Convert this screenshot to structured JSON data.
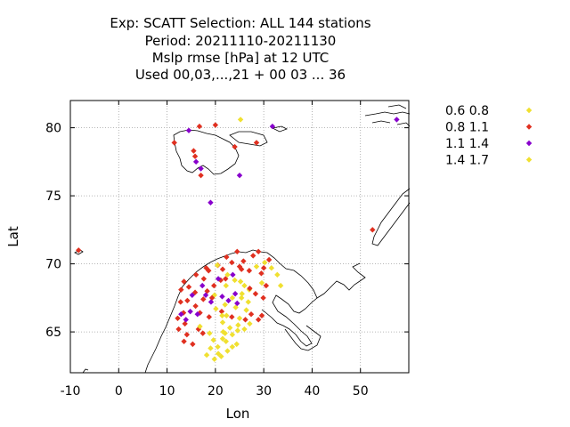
{
  "title_lines": [
    "Exp: SCATT   Selection: ALL    144 stations",
    "Period: 20211110-20211130",
    "Mslp rmse [hPa] at  12 UTC",
    "Used  00,03,...,21  + 00 03 ... 36"
  ],
  "chart_data": {
    "type": "scatter",
    "xlabel": "Lon",
    "ylabel": "Lat",
    "xlim": [
      -10,
      60
    ],
    "ylim": [
      62,
      82
    ],
    "xticks": [
      -10,
      0,
      10,
      20,
      30,
      40,
      50
    ],
    "yticks": [
      65,
      70,
      75,
      80
    ],
    "grid": true,
    "legend_position": "right",
    "series": [
      {
        "name": "0.6 0.8",
        "color": "#f0e030",
        "points": [
          [
            25.2,
            80.6
          ],
          [
            22.5,
            69.2
          ],
          [
            24,
            68.8
          ],
          [
            26,
            68.4
          ],
          [
            27,
            68.1
          ],
          [
            25.5,
            67.8
          ],
          [
            23.5,
            67.5
          ],
          [
            22,
            67
          ],
          [
            24.2,
            66.8
          ],
          [
            26.4,
            66.6
          ],
          [
            22.3,
            66.2
          ],
          [
            25,
            66
          ],
          [
            21.5,
            65.7
          ],
          [
            24.7,
            65.5
          ],
          [
            23,
            65.3
          ],
          [
            26,
            65.2
          ],
          [
            27.1,
            65.6
          ],
          [
            21.6,
            65.0
          ],
          [
            23.5,
            64.8
          ],
          [
            21.5,
            64.5
          ],
          [
            19.6,
            64.4
          ],
          [
            22.2,
            64.3
          ],
          [
            24.4,
            64.1
          ],
          [
            20.5,
            63.9
          ],
          [
            19,
            63.8
          ],
          [
            22.5,
            63.6
          ],
          [
            20.6,
            63.4
          ],
          [
            18.2,
            63.3
          ],
          [
            21.2,
            63.2
          ],
          [
            19.8,
            63.0
          ],
          [
            29.6,
            68.6
          ],
          [
            28.5,
            69.8
          ],
          [
            30.2,
            70.1
          ],
          [
            32.8,
            69.2
          ],
          [
            33.5,
            68.4
          ],
          [
            19.8,
            67.7
          ],
          [
            20.1,
            66.7
          ],
          [
            24.6,
            65.1
          ],
          [
            22,
            64.9
          ]
        ]
      },
      {
        "name": "0.8 1.1",
        "color": "#e03020",
        "points": [
          [
            -8.3,
            71
          ],
          [
            11.5,
            78.9
          ],
          [
            15.5,
            78.3
          ],
          [
            16.7,
            80.1
          ],
          [
            20,
            80.2
          ],
          [
            24,
            78.6
          ],
          [
            28.5,
            78.9
          ],
          [
            17,
            76.5
          ],
          [
            15.8,
            77.9
          ],
          [
            52.5,
            72.5
          ],
          [
            16,
            69.2
          ],
          [
            18.6,
            69.5
          ],
          [
            20.5,
            69.9
          ],
          [
            22.3,
            70.5
          ],
          [
            24.5,
            70.9
          ],
          [
            25.8,
            70.2
          ],
          [
            27.8,
            70.6
          ],
          [
            28.9,
            70.9
          ],
          [
            30,
            69.7
          ],
          [
            31.1,
            70.3
          ],
          [
            29.5,
            69.3
          ],
          [
            27,
            69.5
          ],
          [
            25,
            69.8
          ],
          [
            23.4,
            70.1
          ],
          [
            21.5,
            69.6
          ],
          [
            17.6,
            68.9
          ],
          [
            14.5,
            68.3
          ],
          [
            15.8,
            67.9
          ],
          [
            13.5,
            68.7
          ],
          [
            14.2,
            67.3
          ],
          [
            12.8,
            67.2
          ],
          [
            13.4,
            66.4
          ],
          [
            12.2,
            66
          ],
          [
            13.7,
            65.6
          ],
          [
            12.4,
            65.2
          ],
          [
            14.1,
            64.8
          ],
          [
            13.5,
            64.3
          ],
          [
            15.3,
            64.1
          ],
          [
            16.5,
            65.2
          ],
          [
            16.8,
            66.4
          ],
          [
            17.5,
            67.4
          ],
          [
            18.3,
            68
          ],
          [
            19.7,
            68.4
          ],
          [
            21.1,
            68.8
          ],
          [
            25.4,
            69.6
          ],
          [
            27.1,
            68.2
          ],
          [
            28.3,
            67.8
          ],
          [
            27.4,
            66.3
          ],
          [
            28.9,
            65.9
          ],
          [
            29.6,
            66.2
          ],
          [
            26.2,
            65.9
          ],
          [
            23.4,
            66.1
          ],
          [
            21.3,
            66.5
          ],
          [
            18.7,
            66.1
          ],
          [
            17.4,
            64.9
          ],
          [
            19.3,
            67.5
          ],
          [
            22.1,
            68.9
          ],
          [
            29.9,
            67.5
          ],
          [
            30.5,
            68.4
          ],
          [
            15.9,
            66.9
          ],
          [
            18.1,
            69.7
          ],
          [
            12.9,
            68.1
          ]
        ]
      },
      {
        "name": "1.1 1.4",
        "color": "#8800cc",
        "points": [
          [
            14.5,
            79.8
          ],
          [
            16,
            77.5
          ],
          [
            17,
            77
          ],
          [
            25,
            76.5
          ],
          [
            19,
            74.5
          ],
          [
            31.8,
            80.1
          ],
          [
            57.5,
            80.6
          ],
          [
            17.3,
            68.4
          ],
          [
            18,
            67.7
          ],
          [
            19.1,
            67.2
          ],
          [
            21.4,
            67.6
          ],
          [
            14.8,
            66.5
          ],
          [
            13.9,
            65.9
          ],
          [
            16.3,
            66.3
          ],
          [
            22.7,
            67.3
          ],
          [
            24.1,
            67.8
          ],
          [
            23.6,
            69.2
          ],
          [
            20.6,
            68.9
          ],
          [
            15.2,
            67.7
          ],
          [
            12.9,
            66.3
          ],
          [
            24.5,
            67.1
          ]
        ]
      },
      {
        "name": "1.4 1.7",
        "color": "#f0e030",
        "points": [
          [
            20.4,
            69.9
          ],
          [
            22.2,
            68.4
          ],
          [
            25.2,
            68.7
          ],
          [
            26.8,
            67.2
          ],
          [
            21.4,
            66.2
          ],
          [
            16.8,
            65.4
          ],
          [
            18.8,
            64.9
          ],
          [
            23.5,
            63.9
          ],
          [
            25.4,
            67.5
          ],
          [
            31.6,
            69.7
          ]
        ]
      }
    ]
  }
}
